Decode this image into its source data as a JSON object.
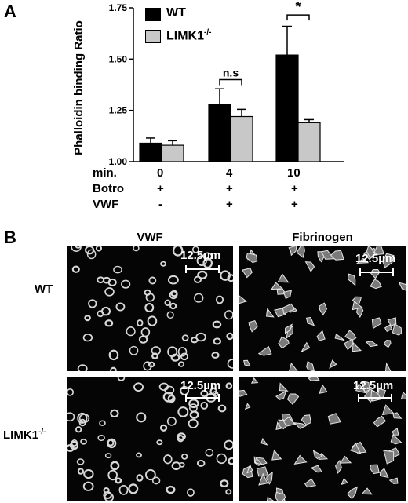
{
  "panel_a_label": "A",
  "panel_b_label": "B",
  "chart_data": {
    "type": "bar",
    "ylabel": "Phalloidin binding Ratio",
    "ylim": [
      1.0,
      1.75
    ],
    "yticks": [
      "1.00",
      "1.25",
      "1.50",
      "1.75"
    ],
    "ytick_values": [
      1.0,
      1.25,
      1.5,
      1.75
    ],
    "categories": [
      "0",
      "4",
      "10"
    ],
    "series": [
      {
        "name": "WT",
        "color": "#000000",
        "values": [
          1.09,
          1.28,
          1.52
        ],
        "errors": [
          0.025,
          0.075,
          0.14
        ]
      },
      {
        "name": "LIMK1-/-",
        "color": "#c8c8c8",
        "values": [
          1.08,
          1.22,
          1.19
        ],
        "errors": [
          0.022,
          0.035,
          0.015
        ]
      }
    ],
    "annotations": [
      "n.s",
      "*"
    ],
    "legend": [
      {
        "text": "WT",
        "superscript": ""
      },
      {
        "text": "LIMK1",
        "superscript": "-/-"
      }
    ],
    "conditions": [
      {
        "label": "min.",
        "values": [
          "0",
          "4",
          "10"
        ]
      },
      {
        "label": "Botro",
        "values": [
          "+",
          "+",
          "+"
        ]
      },
      {
        "label": "VWF",
        "values": [
          "-",
          "+",
          "+"
        ]
      }
    ]
  },
  "micrographs": {
    "columns": [
      "VWF",
      "Fibrinogen"
    ],
    "rows": [
      {
        "text": "WT",
        "superscript": ""
      },
      {
        "text": "LIMK1",
        "superscript": "-/-"
      }
    ],
    "scale_bar": "12.5µm"
  }
}
